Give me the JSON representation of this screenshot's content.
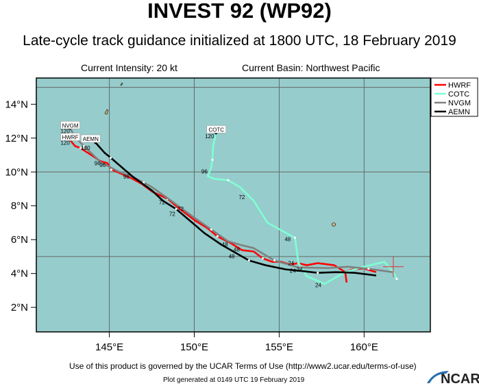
{
  "title": "INVEST 92 (WP92)",
  "subtitle": "Late-cycle track guidance initialized at 1800 UTC, 18 February 2019",
  "current_intensity": "Current Intensity: 20 kt",
  "current_basin": "Current Basin: Northwest Pacific",
  "footer_terms": "Use of this product is governed by the UCAR Terms of Use (http://www2.ucar.edu/terms-of-use)",
  "footer_generated": "Plot generated at 0149 UTC   19 February 2019",
  "logo_text": "NCAR",
  "colors": {
    "ocean": "#96cccc",
    "land": "#d9b27c",
    "grid": "#666666"
  },
  "chart_data": {
    "type": "map-tracks",
    "lon_range": [
      140.7,
      163.9
    ],
    "lat_range": [
      0.55,
      15.55
    ],
    "x_ticks": [
      {
        "v": 145,
        "label": "145°E"
      },
      {
        "v": 150,
        "label": "150°E"
      },
      {
        "v": 155,
        "label": "155°E"
      },
      {
        "v": 160,
        "label": "160°E"
      }
    ],
    "y_ticks": [
      {
        "v": 2,
        "label": "2°N"
      },
      {
        "v": 4,
        "label": "4°N"
      },
      {
        "v": 6,
        "label": "6°N"
      },
      {
        "v": 8,
        "label": "8°N"
      },
      {
        "v": 10,
        "label": "10°N"
      },
      {
        "v": 12,
        "label": "12°N"
      },
      {
        "v": 14,
        "label": "14°N"
      }
    ],
    "grid_lon": [
      145,
      150,
      155,
      160
    ],
    "grid_lat": [
      5,
      10,
      15
    ],
    "current_position": [
      161.72,
      4.4
    ],
    "legend": {
      "placement": "top-right outside"
    },
    "series": [
      {
        "name": "HWRF",
        "color": "#ff0000",
        "segments": [
          [
            [
              142.69,
              11.89
            ],
            [
              142.98,
              11.53
            ],
            [
              143.3,
              11.41
            ],
            [
              143.87,
              11.04
            ],
            [
              144.47,
              10.64
            ],
            [
              144.88,
              10.52
            ],
            [
              145.12,
              10.15
            ],
            [
              146.3,
              9.63
            ],
            [
              146.9,
              9.3
            ],
            [
              147.55,
              8.82
            ],
            [
              148.44,
              8.41
            ],
            [
              149.05,
              7.89
            ],
            [
              150.06,
              7.12
            ],
            [
              150.79,
              6.67
            ],
            [
              151.36,
              6.19
            ],
            [
              152.17,
              5.78
            ],
            [
              152.81,
              5.38
            ],
            [
              153.5,
              5.3
            ],
            [
              154.03,
              4.89
            ],
            [
              154.6,
              4.69
            ],
            [
              155.12,
              4.69
            ],
            [
              155.65,
              4.53
            ],
            [
              156.13,
              4.61
            ],
            [
              156.62,
              4.49
            ],
            [
              157.27,
              4.61
            ],
            [
              158.24,
              4.49
            ],
            [
              158.89,
              4.08
            ],
            [
              159.3,
              4.24
            ],
            [
              159.98,
              4.3
            ],
            [
              160.71,
              4.08
            ]
          ],
          [
            [
              158.89,
              4.08
            ],
            [
              158.97,
              3.47
            ]
          ]
        ]
      },
      {
        "name": "COTC",
        "color": "#7fffd4",
        "segments": [
          [
            [
              151.28,
              12.3
            ],
            [
              151.11,
              11.53
            ],
            [
              151.07,
              10.72
            ],
            [
              150.99,
              10.23
            ],
            [
              150.79,
              9.75
            ],
            [
              151.19,
              9.59
            ],
            [
              152.0,
              9.51
            ],
            [
              152.69,
              9.1
            ],
            [
              153.5,
              8.3
            ],
            [
              154.31,
              7.0
            ],
            [
              155.93,
              6.11
            ],
            [
              156.13,
              4.65
            ],
            [
              156.62,
              3.84
            ],
            [
              157.67,
              3.39
            ],
            [
              158.89,
              4.08
            ],
            [
              159.98,
              4.4
            ],
            [
              161.19,
              4.69
            ],
            [
              161.72,
              4.08
            ],
            [
              161.92,
              3.68
            ]
          ]
        ]
      },
      {
        "name": "NVGM",
        "color": "#808080",
        "segments": [
          [
            [
              142.69,
              12.58
            ],
            [
              142.98,
              12.06
            ],
            [
              143.5,
              11.53
            ],
            [
              144.51,
              10.56
            ],
            [
              145.53,
              10.03
            ],
            [
              146.34,
              9.71
            ],
            [
              147.02,
              9.38
            ],
            [
              147.51,
              9.1
            ],
            [
              148.5,
              8.4
            ],
            [
              150.0,
              7.3
            ],
            [
              151.0,
              6.6
            ],
            [
              152.0,
              5.9
            ],
            [
              152.69,
              5.7
            ],
            [
              153.5,
              5.5
            ],
            [
              154.72,
              4.77
            ],
            [
              156.13,
              4.36
            ],
            [
              157.83,
              4.32
            ],
            [
              159.05,
              4.4
            ],
            [
              160.26,
              4.28
            ],
            [
              161.68,
              4.08
            ]
          ]
        ]
      },
      {
        "name": "AEMN",
        "color": "#000000",
        "segments": [
          [
            [
              144.19,
              11.73
            ],
            [
              144.72,
              11.13
            ],
            [
              145.08,
              10.84
            ],
            [
              146.34,
              9.75
            ],
            [
              147.51,
              8.9
            ],
            [
              148.16,
              8.29
            ],
            [
              148.93,
              7.81
            ],
            [
              149.98,
              6.92
            ],
            [
              150.59,
              6.39
            ],
            [
              151.6,
              5.7
            ],
            [
              153.22,
              4.77
            ],
            [
              154.19,
              4.49
            ],
            [
              155.4,
              4.24
            ],
            [
              156.21,
              4.16
            ],
            [
              157.27,
              4.04
            ],
            [
              158.36,
              4.08
            ],
            [
              159.45,
              4.04
            ],
            [
              160.71,
              3.88
            ]
          ]
        ]
      }
    ],
    "model_labels": [
      {
        "text": "NVGM",
        "lon": 142.7,
        "lat": 12.75
      },
      {
        "text": "HWRF",
        "lon": 142.7,
        "lat": 12.05
      },
      {
        "text": "AEMN",
        "lon": 143.9,
        "lat": 11.95
      },
      {
        "text": "COTC",
        "lon": 151.3,
        "lat": 12.5
      }
    ],
    "hour_labels": [
      {
        "text": "120",
        "lon": 142.4,
        "lat": 12.3
      },
      {
        "text": "120",
        "lon": 142.4,
        "lat": 11.6
      },
      {
        "text": "120",
        "lon": 143.6,
        "lat": 11.3
      },
      {
        "text": "120",
        "lon": 150.9,
        "lat": 12.0
      },
      {
        "text": "96",
        "lon": 144.3,
        "lat": 10.4
      },
      {
        "text": "96",
        "lon": 144.6,
        "lat": 10.3
      },
      {
        "text": "96",
        "lon": 146.0,
        "lat": 9.6
      },
      {
        "text": "96",
        "lon": 150.6,
        "lat": 9.9
      },
      {
        "text": "72",
        "lon": 148.1,
        "lat": 8.1
      },
      {
        "text": "72",
        "lon": 148.7,
        "lat": 7.4
      },
      {
        "text": "72",
        "lon": 149.2,
        "lat": 7.7
      },
      {
        "text": "72",
        "lon": 152.8,
        "lat": 8.4
      },
      {
        "text": "48",
        "lon": 151.8,
        "lat": 5.6
      },
      {
        "text": "48",
        "lon": 152.5,
        "lat": 5.3
      },
      {
        "text": "48",
        "lon": 152.2,
        "lat": 4.9
      },
      {
        "text": "48",
        "lon": 155.5,
        "lat": 5.9
      },
      {
        "text": "24",
        "lon": 155.7,
        "lat": 4.5
      },
      {
        "text": "24",
        "lon": 155.8,
        "lat": 4.05
      },
      {
        "text": "24",
        "lon": 156.2,
        "lat": 4.1
      },
      {
        "text": "24",
        "lon": 157.3,
        "lat": 3.2
      }
    ]
  }
}
